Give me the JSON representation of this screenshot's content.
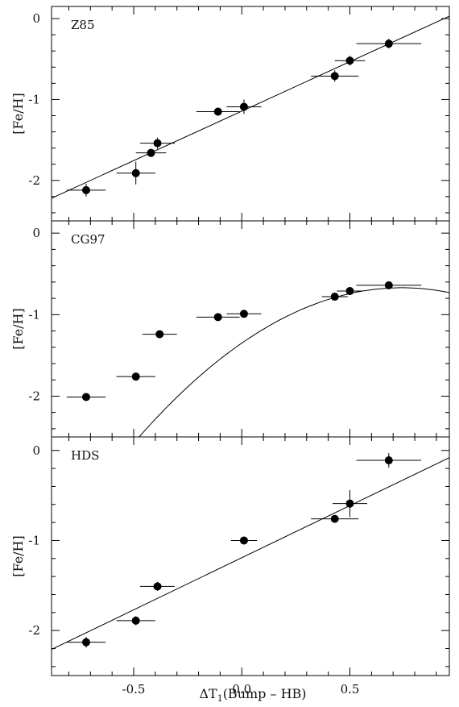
{
  "chart_data": [
    {
      "type": "scatter",
      "panel_label": "Z85",
      "ylabel": "[Fe/H]",
      "xlim": [
        -0.88,
        0.96
      ],
      "ylim": [
        -2.5,
        0.15
      ],
      "yticks": [
        0,
        -1,
        -2
      ],
      "ytick_labels": [
        "0",
        "-1",
        "-2"
      ],
      "points": [
        {
          "x": -0.72,
          "y": -2.12,
          "xerr": 0.09,
          "yerr": 0.08
        },
        {
          "x": -0.49,
          "y": -1.91,
          "xerr": 0.09,
          "yerr": 0.14
        },
        {
          "x": -0.42,
          "y": -1.66,
          "xerr": 0.07,
          "yerr": 0.05
        },
        {
          "x": -0.39,
          "y": -1.54,
          "xerr": 0.08,
          "yerr": 0.07
        },
        {
          "x": -0.11,
          "y": -1.15,
          "xerr": 0.1,
          "yerr": 0.05
        },
        {
          "x": 0.01,
          "y": -1.09,
          "xerr": 0.08,
          "yerr": 0.09
        },
        {
          "x": 0.43,
          "y": -0.71,
          "xerr": 0.11,
          "yerr": 0.07
        },
        {
          "x": 0.5,
          "y": -0.52,
          "xerr": 0.07,
          "yerr": 0.06
        },
        {
          "x": 0.68,
          "y": -0.31,
          "xerr": 0.15,
          "yerr": 0.06
        }
      ],
      "fit": {
        "kind": "linear",
        "x": [
          -0.88,
          0.96
        ],
        "y": [
          -2.22,
          0.03
        ]
      }
    },
    {
      "type": "scatter",
      "panel_label": "CG97",
      "ylabel": "[Fe/H]",
      "xlim": [
        -0.88,
        0.96
      ],
      "ylim": [
        -2.5,
        0.15
      ],
      "yticks": [
        0,
        -1,
        -2
      ],
      "ytick_labels": [
        "0",
        "-1",
        "-2"
      ],
      "points": [
        {
          "x": -0.72,
          "y": -2.01,
          "xerr": 0.09,
          "yerr": 0.0
        },
        {
          "x": -0.49,
          "y": -1.76,
          "xerr": 0.09,
          "yerr": 0.0
        },
        {
          "x": -0.38,
          "y": -1.24,
          "xerr": 0.08,
          "yerr": 0.0
        },
        {
          "x": -0.11,
          "y": -1.03,
          "xerr": 0.1,
          "yerr": 0.0
        },
        {
          "x": 0.01,
          "y": -0.99,
          "xerr": 0.08,
          "yerr": 0.0
        },
        {
          "x": 0.43,
          "y": -0.78,
          "xerr": 0.06,
          "yerr": 0.0
        },
        {
          "x": 0.5,
          "y": -0.71,
          "xerr": 0.06,
          "yerr": 0.0
        },
        {
          "x": 0.68,
          "y": -0.64,
          "xerr": 0.15,
          "yerr": 0.0
        }
      ],
      "fit": {
        "kind": "quadratic",
        "x_vertex": 0.74,
        "y_vertex": -0.67,
        "a": -1.24,
        "xrange": [
          -0.88,
          0.96
        ]
      }
    },
    {
      "type": "scatter",
      "panel_label": "HDS",
      "ylabel": "[Fe/H]",
      "xlim": [
        -0.88,
        0.96
      ],
      "ylim": [
        -2.5,
        0.15
      ],
      "yticks": [
        0,
        -1,
        -2
      ],
      "ytick_labels": [
        "0",
        "-1",
        "-2"
      ],
      "points": [
        {
          "x": -0.72,
          "y": -2.13,
          "xerr": 0.09,
          "yerr": 0.06
        },
        {
          "x": -0.49,
          "y": -1.89,
          "xerr": 0.09,
          "yerr": 0.05
        },
        {
          "x": -0.39,
          "y": -1.51,
          "xerr": 0.08,
          "yerr": 0.05
        },
        {
          "x": 0.01,
          "y": -1.0,
          "xerr": 0.06,
          "yerr": 0.04
        },
        {
          "x": 0.43,
          "y": -0.76,
          "xerr": 0.11,
          "yerr": 0.04
        },
        {
          "x": 0.5,
          "y": -0.59,
          "xerr": 0.08,
          "yerr": 0.15
        },
        {
          "x": 0.68,
          "y": -0.11,
          "xerr": 0.15,
          "yerr": 0.08
        }
      ],
      "fit": {
        "kind": "linear",
        "x": [
          -0.88,
          0.96
        ],
        "y": [
          -2.21,
          -0.08
        ]
      }
    }
  ],
  "x_axis": {
    "ticks": [
      -0.5,
      0.0,
      0.5
    ],
    "tick_labels": [
      "-0.5",
      "0.0",
      "0.5"
    ],
    "title_prefix": "ΔT",
    "title_subscript": "1",
    "title_suffix": "(Bump – HB)"
  },
  "colors": {
    "marker": "#000000",
    "line": "#000000",
    "background": "#ffffff"
  }
}
